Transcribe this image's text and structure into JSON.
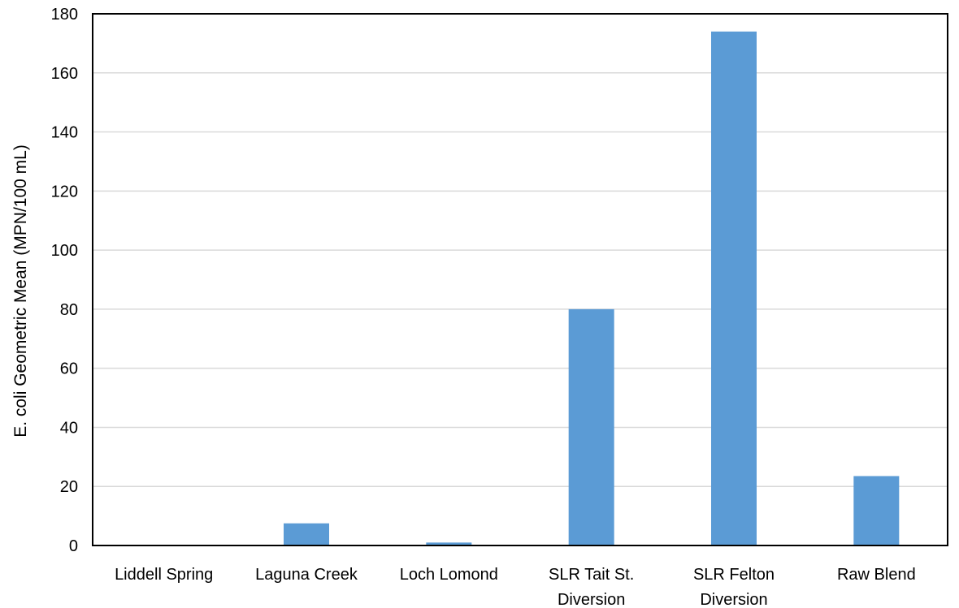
{
  "chart_data": {
    "type": "bar",
    "title": "",
    "xlabel": "",
    "ylabel": "E. coli Geometric Mean (MPN/100 mL)",
    "categories": [
      [
        "Liddell Spring"
      ],
      [
        "Laguna Creek"
      ],
      [
        "Loch Lomond"
      ],
      [
        "SLR Tait St.",
        "Diversion"
      ],
      [
        "SLR Felton",
        "Diversion"
      ],
      [
        "Raw Blend"
      ]
    ],
    "values": [
      0,
      7.5,
      1,
      80,
      174,
      23.5
    ],
    "ylim": [
      0,
      180
    ],
    "yticks": [
      0,
      20,
      40,
      60,
      80,
      100,
      120,
      140,
      160,
      180
    ],
    "grid": true,
    "legend": "none",
    "colors": {
      "bar": "#5b9bd5",
      "grid": "#d9d9d9",
      "frame": "#000000",
      "text": "#000000"
    }
  }
}
